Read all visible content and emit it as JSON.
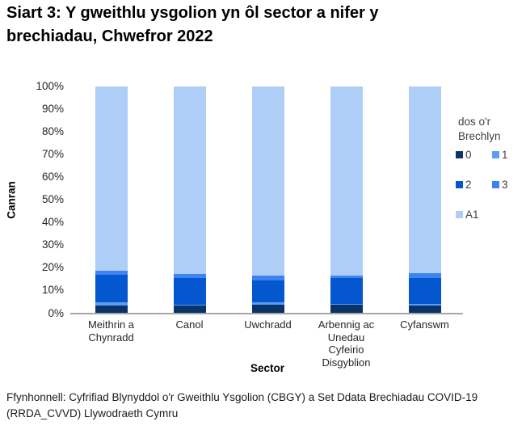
{
  "title": "Siart 3: Y gweithlu ysgolion yn ôl sector a nifer y brechiadau, Chwefror 2022",
  "footer": {
    "text": "Ffynhonnell: Cyfrifiad Blynyddol o'r Gweithlu Ysgolion (CBGY) a Set Ddata Brechiadau COVID-19 (RRDA_CVVD) Llywodraeth Cymru"
  },
  "chart_data": {
    "type": "bar",
    "stacked": true,
    "title": "Siart 3: Y gweithlu ysgolion yn ôl sector a nifer y brechiadau, Chwefror 2022",
    "xlabel": "Sector",
    "ylabel": "Canran",
    "ylim": [
      0,
      100
    ],
    "ytick_step": 10,
    "yticks": [
      "0%",
      "10%",
      "20%",
      "30%",
      "40%",
      "50%",
      "60%",
      "70%",
      "80%",
      "90%",
      "100%"
    ],
    "categories": [
      "Meithrin a Chynradd",
      "Canol",
      "Uwchradd",
      "Arbennig ac Unedau Cyfeirio Disgyblion",
      "Cyfanswm"
    ],
    "legend_title": "dos o'r Brechlyn",
    "legend_position": "right",
    "grid": false,
    "series": [
      {
        "name": "0",
        "color": "#093469",
        "values": [
          3.5,
          3.3,
          3.7,
          3.7,
          3.4
        ]
      },
      {
        "name": "1",
        "color": "#5e9bf3",
        "values": [
          1.2,
          0.4,
          1.1,
          0.3,
          0.7
        ]
      },
      {
        "name": "2",
        "color": "#0457cf",
        "values": [
          12.2,
          11.9,
          9.7,
          11.4,
          11.4
        ]
      },
      {
        "name": "3",
        "color": "#3e83ef",
        "values": [
          1.8,
          1.8,
          2.1,
          1.1,
          2.1
        ]
      },
      {
        "name": "A1",
        "color": "#aecdf7",
        "values": [
          81.3,
          82.6,
          83.4,
          83.5,
          82.4
        ]
      }
    ],
    "colors": {
      "axis_line": "#a6a6a6"
    }
  }
}
